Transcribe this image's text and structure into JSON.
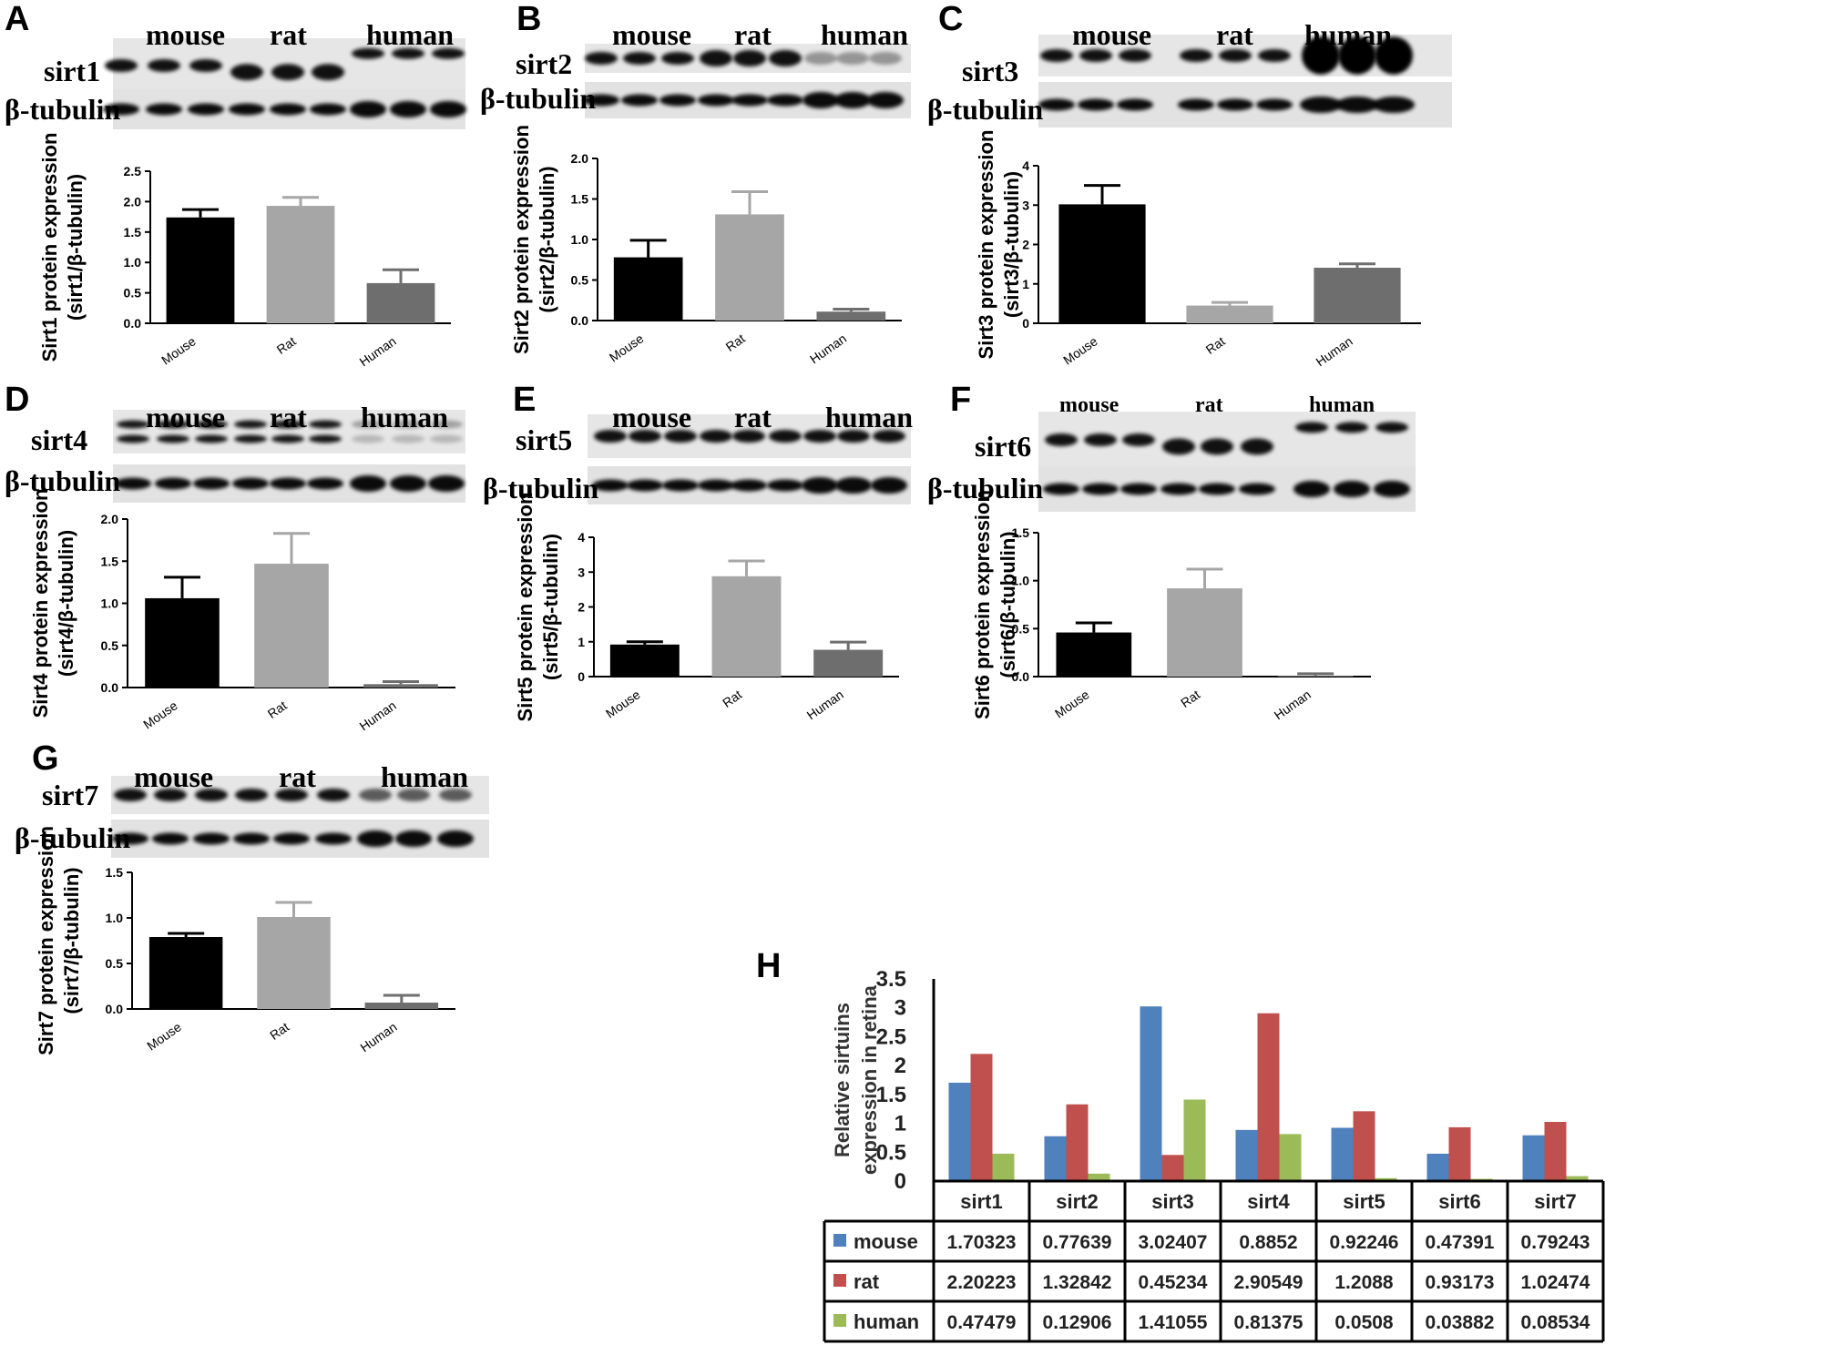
{
  "panels": [
    {
      "id": "A",
      "letter": "A",
      "protein": "sirt1",
      "loading": "β-tubulin",
      "species": [
        "mouse",
        "rat",
        "human"
      ],
      "ylabel": "Sirt1 protein expression",
      "ylabel2": "(sirt1/β-tubulin)",
      "ticks": [
        "0.0",
        "0.5",
        "1.0",
        "1.5",
        "2.0",
        "2.5"
      ]
    },
    {
      "id": "B",
      "letter": "B",
      "protein": "sirt2",
      "loading": "β-tubulin",
      "species": [
        "mouse",
        "rat",
        "human"
      ],
      "ylabel": "Sirt2 protein expression",
      "ylabel2": "(sirt2/β-tubulin)",
      "ticks": [
        "0.0",
        "0.5",
        "1.0",
        "1.5",
        "2.0"
      ]
    },
    {
      "id": "C",
      "letter": "C",
      "protein": "sirt3",
      "loading": "β-tubulin",
      "species": [
        "mouse",
        "rat",
        "human"
      ],
      "ylabel": "Sirt3 protein expression",
      "ylabel2": "(sirt3/β-tubulin)",
      "ticks": [
        "0",
        "1",
        "2",
        "3",
        "4"
      ]
    },
    {
      "id": "D",
      "letter": "D",
      "protein": "sirt4",
      "loading": "β-tubulin",
      "species": [
        "mouse",
        "rat",
        "human"
      ],
      "ylabel": "Sirt4 protein expression",
      "ylabel2": "(sirt4/β-tubulin)",
      "ticks": [
        "0.0",
        "0.5",
        "1.0",
        "1.5",
        "2.0"
      ]
    },
    {
      "id": "E",
      "letter": "E",
      "protein": "sirt5",
      "loading": "β-tubulin",
      "species": [
        "mouse",
        "rat",
        "human"
      ],
      "ylabel": "Sirt5 protein expression",
      "ylabel2": "(sirt5/β-tubulin)",
      "ticks": [
        "0",
        "1",
        "2",
        "3",
        "4"
      ]
    },
    {
      "id": "F",
      "letter": "F",
      "protein": "sirt6",
      "loading": "β-tubulin",
      "species": [
        "mouse",
        "rat",
        "human"
      ],
      "ylabel": "Sirt6 protein expression",
      "ylabel2": "(sirt6/β-tubulin)",
      "ticks": [
        "0.0",
        "0.5",
        "1.0",
        "1.5"
      ]
    },
    {
      "id": "G",
      "letter": "G",
      "protein": "sirt7",
      "loading": "β-tubulin",
      "species": [
        "mouse",
        "rat",
        "human"
      ],
      "ylabel": "Sirt7 protein expression",
      "ylabel2": "(sirt7/β-tubulin)",
      "ticks": [
        "0.0",
        "0.5",
        "1.0",
        "1.5"
      ]
    }
  ],
  "panel_h": {
    "letter": "H",
    "ylabel": "Relative sirtuins",
    "ylabel2": "expression in retina"
  },
  "colors": {
    "mouse_bar": "#000000",
    "rat_bar": "#a6a6a6",
    "human_bar": "#6e6e6e",
    "h_mouse": "#4f81bd",
    "h_rat": "#c0504d",
    "h_human": "#9bbb59"
  },
  "chart_data": [
    {
      "type": "bar",
      "panel": "A",
      "categories": [
        "Mouse",
        "Rat",
        "Human"
      ],
      "values": [
        1.74,
        1.93,
        0.66
      ],
      "errors": [
        0.13,
        0.14,
        0.22
      ],
      "ylabel": "Sirt1 protein expression (sirt1/β-tubulin)",
      "ylim": [
        0,
        2.5
      ]
    },
    {
      "type": "bar",
      "panel": "B",
      "categories": [
        "Mouse",
        "Rat",
        "Human"
      ],
      "values": [
        0.78,
        1.31,
        0.11
      ],
      "errors": [
        0.21,
        0.28,
        0.03
      ],
      "ylabel": "Sirt2 protein expression (sirt2/β-tubulin)",
      "ylim": [
        0,
        2.0
      ]
    },
    {
      "type": "bar",
      "panel": "C",
      "categories": [
        "Mouse",
        "Rat",
        "Human"
      ],
      "values": [
        3.02,
        0.45,
        1.41
      ],
      "errors": [
        0.48,
        0.08,
        0.1
      ],
      "ylabel": "Sirt3 protein expression (sirt3/β-tubulin)",
      "ylim": [
        0,
        4
      ]
    },
    {
      "type": "bar",
      "panel": "D",
      "categories": [
        "Mouse",
        "Rat",
        "Human"
      ],
      "values": [
        1.06,
        1.47,
        0.04
      ],
      "errors": [
        0.25,
        0.36,
        0.03
      ],
      "ylabel": "Sirt4 protein expression (sirt4/β-tubulin)",
      "ylim": [
        0,
        2.0
      ]
    },
    {
      "type": "bar",
      "panel": "E",
      "categories": [
        "Mouse",
        "Rat",
        "Human"
      ],
      "values": [
        0.92,
        2.88,
        0.77
      ],
      "errors": [
        0.08,
        0.44,
        0.22
      ],
      "ylabel": "Sirt5 protein expression (sirt5/β-tubulin)",
      "ylim": [
        0,
        4
      ]
    },
    {
      "type": "bar",
      "panel": "F",
      "categories": [
        "Mouse",
        "Rat",
        "Human"
      ],
      "values": [
        0.46,
        0.92,
        0.01
      ],
      "errors": [
        0.1,
        0.2,
        0.02
      ],
      "ylabel": "Sirt6 protein expression (sirt6/β-tubulin)",
      "ylim": [
        0,
        1.5
      ]
    },
    {
      "type": "bar",
      "panel": "G",
      "categories": [
        "Mouse",
        "Rat",
        "Human"
      ],
      "values": [
        0.79,
        1.01,
        0.07
      ],
      "errors": [
        0.04,
        0.16,
        0.08
      ],
      "ylabel": "Sirt7 protein expression (sirt7/β-tubulin)",
      "ylim": [
        0,
        1.5
      ]
    },
    {
      "type": "bar",
      "panel": "H",
      "categories": [
        "sirt1",
        "sirt2",
        "sirt3",
        "sirt4",
        "sirt5",
        "sirt6",
        "sirt7"
      ],
      "series": [
        {
          "name": "mouse",
          "values": [
            1.70323,
            0.77639,
            3.02407,
            0.8852,
            0.92246,
            0.47391,
            0.79243
          ],
          "labels": [
            "1.70323",
            "0.77639",
            "3.02407",
            "0.8852",
            "0.92246",
            "0.47391",
            "0.79243"
          ]
        },
        {
          "name": "rat",
          "values": [
            2.20223,
            1.32842,
            0.45234,
            2.90549,
            1.2088,
            0.93173,
            1.02474
          ],
          "labels": [
            "2.20223",
            "1.32842",
            "0.45234",
            "2.90549",
            "1.2088",
            "0.93173",
            "1.02474"
          ]
        },
        {
          "name": "human",
          "values": [
            0.47479,
            0.12906,
            1.41055,
            0.81375,
            0.0508,
            0.03882,
            0.08534
          ],
          "labels": [
            "0.47479",
            "0.12906",
            "1.41055",
            "0.81375",
            "0.0508",
            "0.03882",
            "0.08534"
          ]
        }
      ],
      "ticks": [
        "0",
        "0.5",
        "1",
        "1.5",
        "2",
        "2.5",
        "3",
        "3.5"
      ],
      "ylim": [
        0,
        3.5
      ],
      "ylabel": "Relative sirtuins expression in retina"
    }
  ]
}
